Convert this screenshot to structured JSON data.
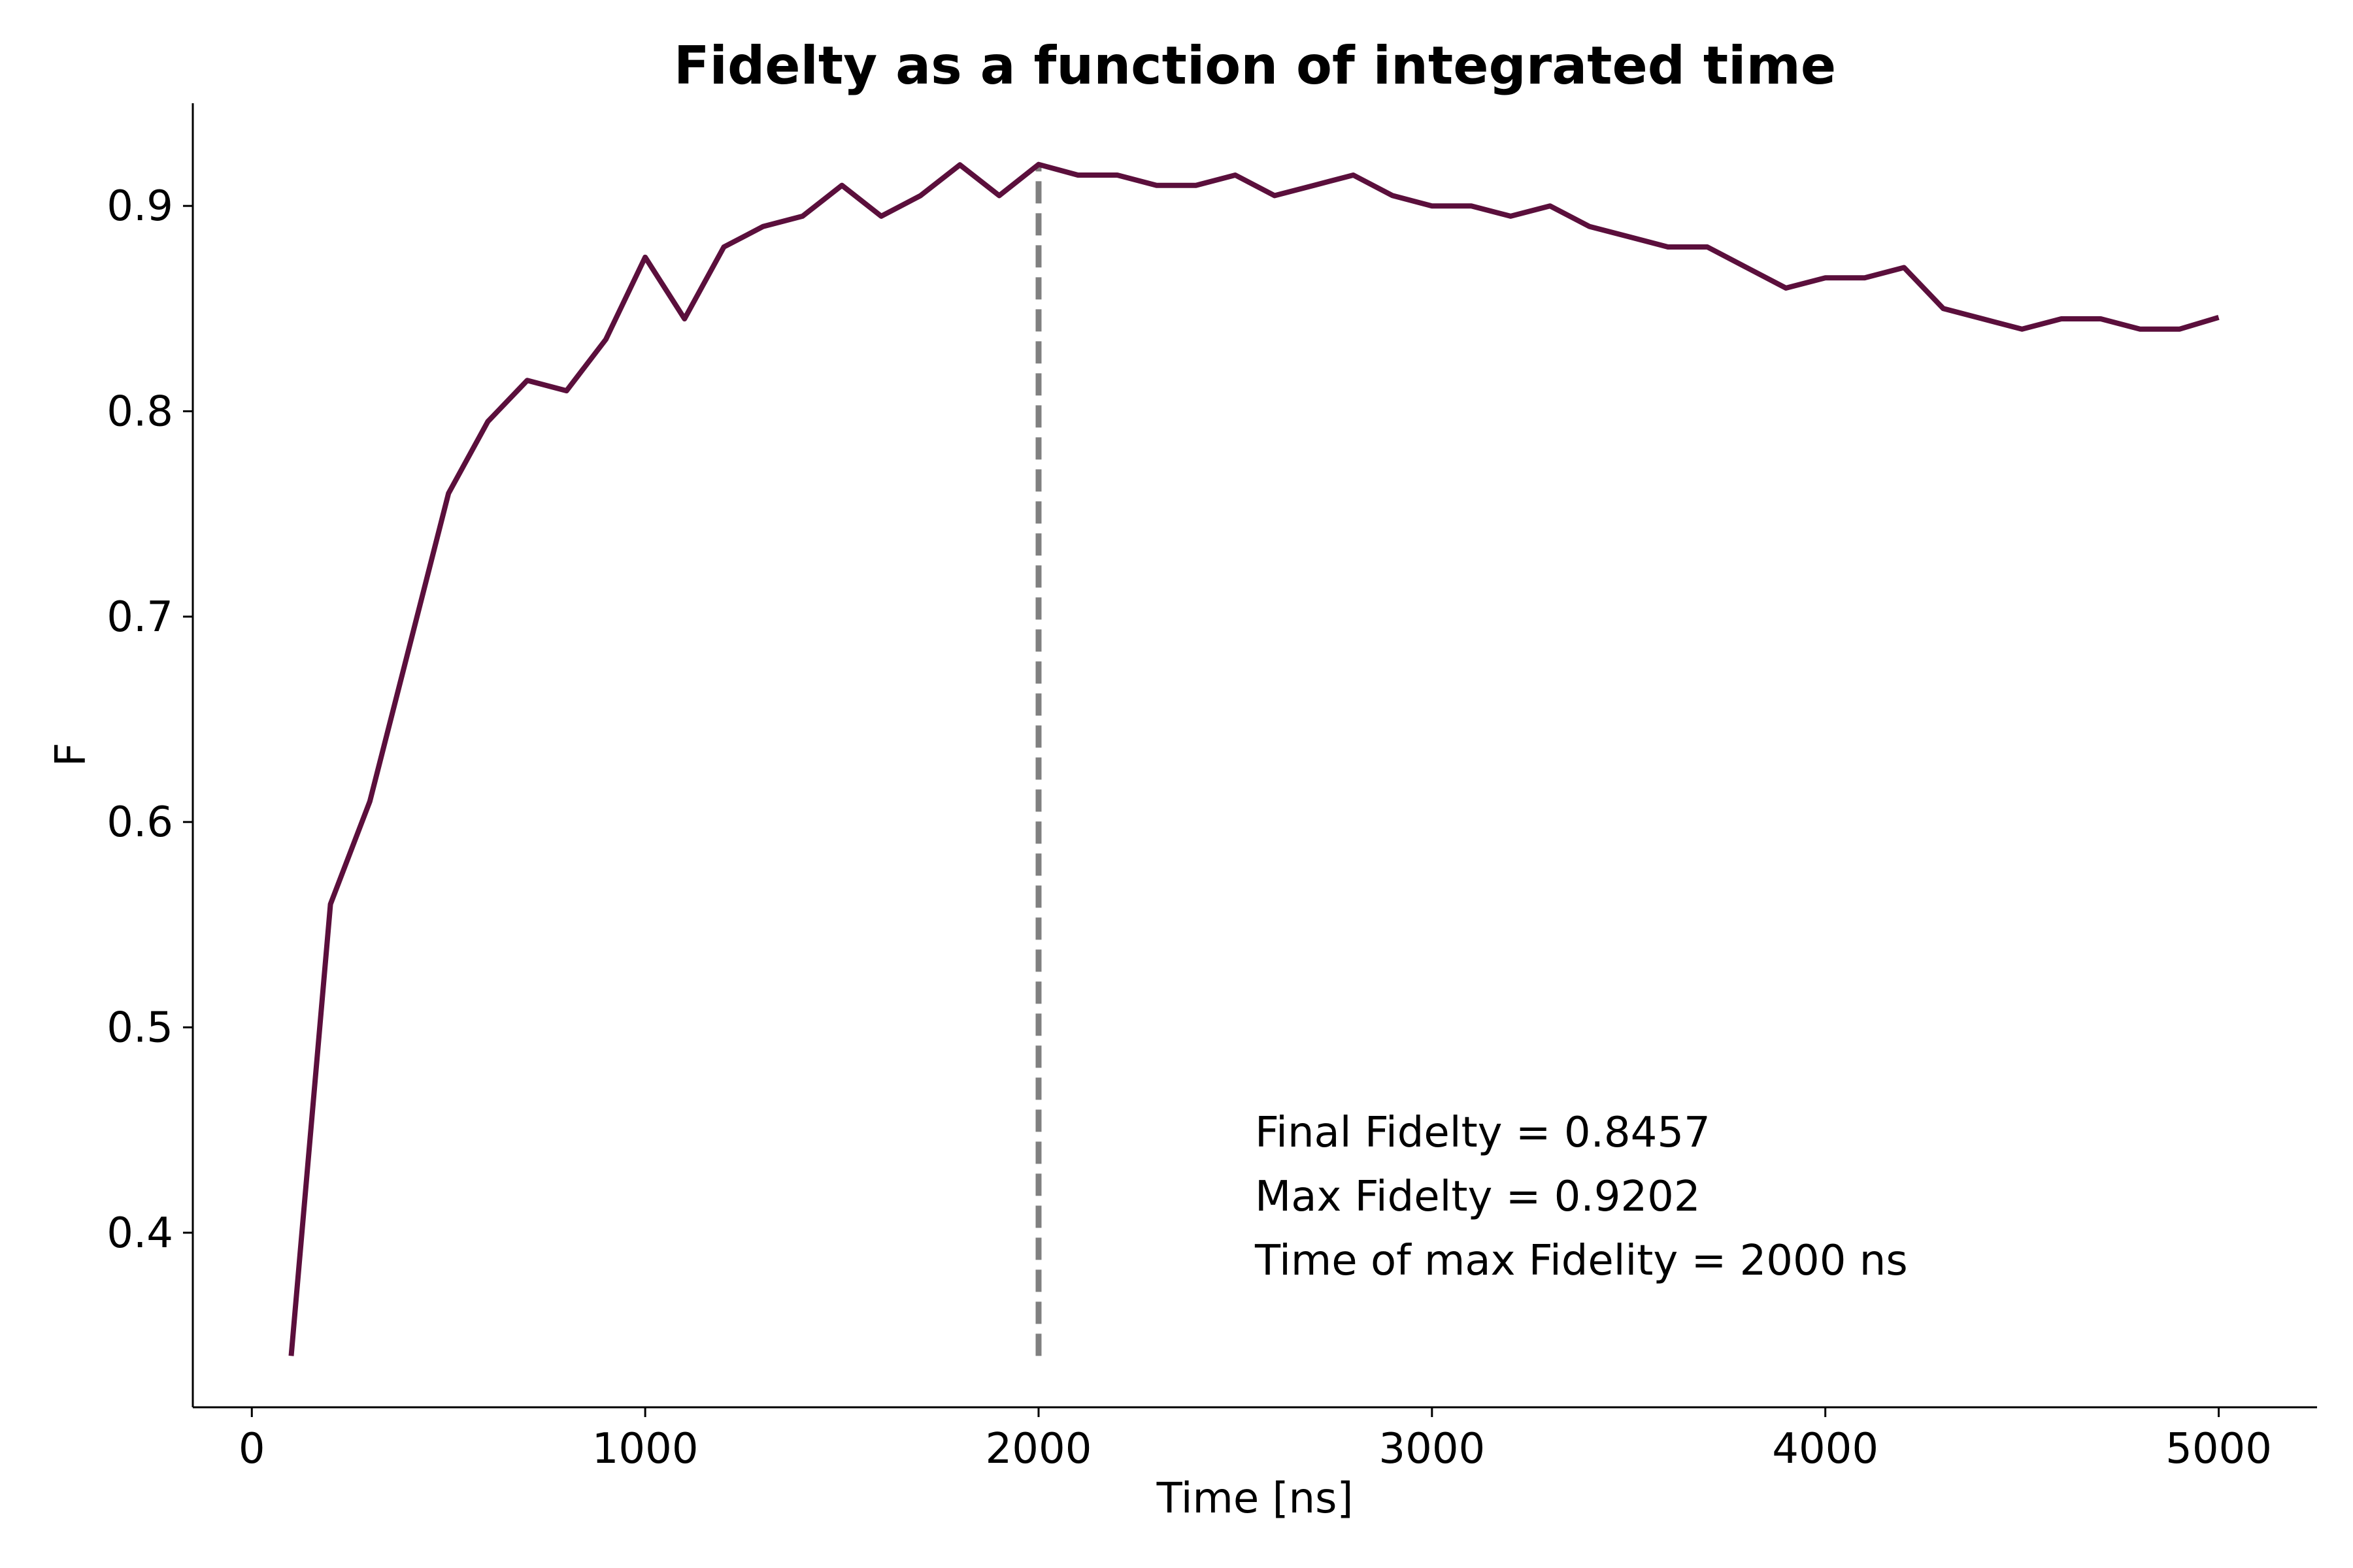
{
  "chart_data": {
    "type": "line",
    "title": "Fidelty as a function of integrated time",
    "xlabel": "Time  [ns]",
    "ylabel": "F",
    "xlim": [
      -150,
      5250
    ],
    "ylim": [
      0.315,
      0.95
    ],
    "xticks": [
      0,
      1000,
      2000,
      3000,
      4000,
      5000
    ],
    "xtick_labels": [
      "0",
      "1000",
      "2000",
      "3000",
      "4000",
      "5000"
    ],
    "yticks": [
      0.4,
      0.5,
      0.6,
      0.7,
      0.8,
      0.9
    ],
    "ytick_labels": [
      "0.4",
      "0.5",
      "0.6",
      "0.7",
      "0.8",
      "0.9"
    ],
    "grid": false,
    "legend": "none",
    "series": [
      {
        "color": "#5b0f3c",
        "x": [
          100,
          200,
          300,
          400,
          500,
          600,
          700,
          800,
          900,
          1000,
          1100,
          1200,
          1300,
          1400,
          1500,
          1600,
          1700,
          1800,
          1900,
          2000,
          2100,
          2200,
          2300,
          2400,
          2500,
          2600,
          2700,
          2800,
          2900,
          3000,
          3100,
          3200,
          3300,
          3400,
          3500,
          3600,
          3700,
          3800,
          3900,
          4000,
          4100,
          4200,
          4300,
          4400,
          4500,
          4600,
          4700,
          4800,
          4900,
          5000
        ],
        "y": [
          0.34,
          0.56,
          0.61,
          0.685,
          0.76,
          0.795,
          0.815,
          0.81,
          0.835,
          0.875,
          0.845,
          0.88,
          0.89,
          0.895,
          0.91,
          0.895,
          0.905,
          0.92,
          0.905,
          0.9202,
          0.915,
          0.915,
          0.91,
          0.91,
          0.915,
          0.905,
          0.91,
          0.915,
          0.905,
          0.9,
          0.9,
          0.895,
          0.9,
          0.89,
          0.885,
          0.88,
          0.88,
          0.87,
          0.86,
          0.865,
          0.865,
          0.87,
          0.85,
          0.845,
          0.84,
          0.845,
          0.845,
          0.84,
          0.84,
          0.8457
        ]
      }
    ],
    "vline": {
      "x": 2000,
      "y_from": 0.34,
      "y_to": 0.9202,
      "color": "#808080",
      "style": "dashed"
    },
    "annotations": [
      "Final Fidelty = 0.8457",
      "Max Fidelty = 0.9202",
      "Time of max Fidelity = 2000 ns"
    ],
    "annotation_anchor": {
      "x": 2550
    }
  }
}
